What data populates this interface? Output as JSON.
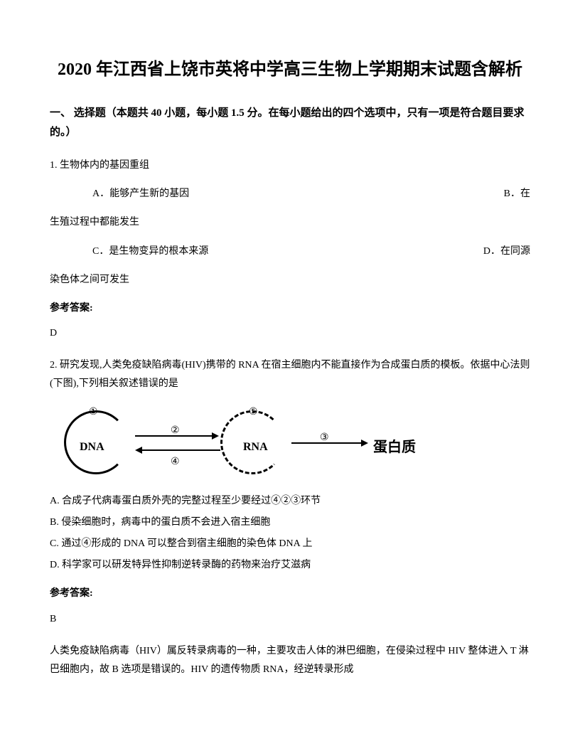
{
  "title": "2020 年江西省上饶市英将中学高三生物上学期期末试题含解析",
  "section": "一、 选择题（本题共 40 小题，每小题 1.5 分。在每小题给出的四个选项中，只有一项是符合题目要求的。）",
  "q1": {
    "number": "1.",
    "text": "生物体内的基因重组",
    "optA": "A．能够产生新的基因",
    "optB": "B．在",
    "optB_cont": "生殖过程中都能发生",
    "optC": "C．是生物变异的根本来源",
    "optD": "D．在同源",
    "optD_cont": "染色体之间可发生",
    "answerLabel": "参考答案:",
    "answer": "D"
  },
  "q2": {
    "number": "2.",
    "text": "研究发现,人类免疫缺陷病毒(HIV)携带的 RNA 在宿主细胞内不能直接作为合成蛋白质的模板。依据中心法则(下图),下列相关叙述错误的是",
    "diagram": {
      "dna": "DNA",
      "rna": "RNA",
      "protein": "蛋白质",
      "num1": "①",
      "num2": "②",
      "num3": "③",
      "num4": "④",
      "num5": "⑤"
    },
    "optA": "A.  合成子代病毒蛋白质外壳的完整过程至少要经过④②③环节",
    "optB": "B.  侵染细胞时，病毒中的蛋白质不会进入宿主细胞",
    "optC": "C.  通过④形成的 DNA  可以整合到宿主细胞的染色体 DNA 上",
    "optD": "D.  科学家可以研发特异性抑制逆转录酶的药物来治疗艾滋病",
    "answerLabel": "参考答案:",
    "answer": "B",
    "explanation": "人类免疫缺陷病毒（HIV）属反转录病毒的一种，主要攻击人体的淋巴细胞，在侵染过程中 HIV 整体进入 T 淋巴细胞内，故 B 选项是错误的。HIV 的遗传物质 RNA，经逆转录形成"
  }
}
